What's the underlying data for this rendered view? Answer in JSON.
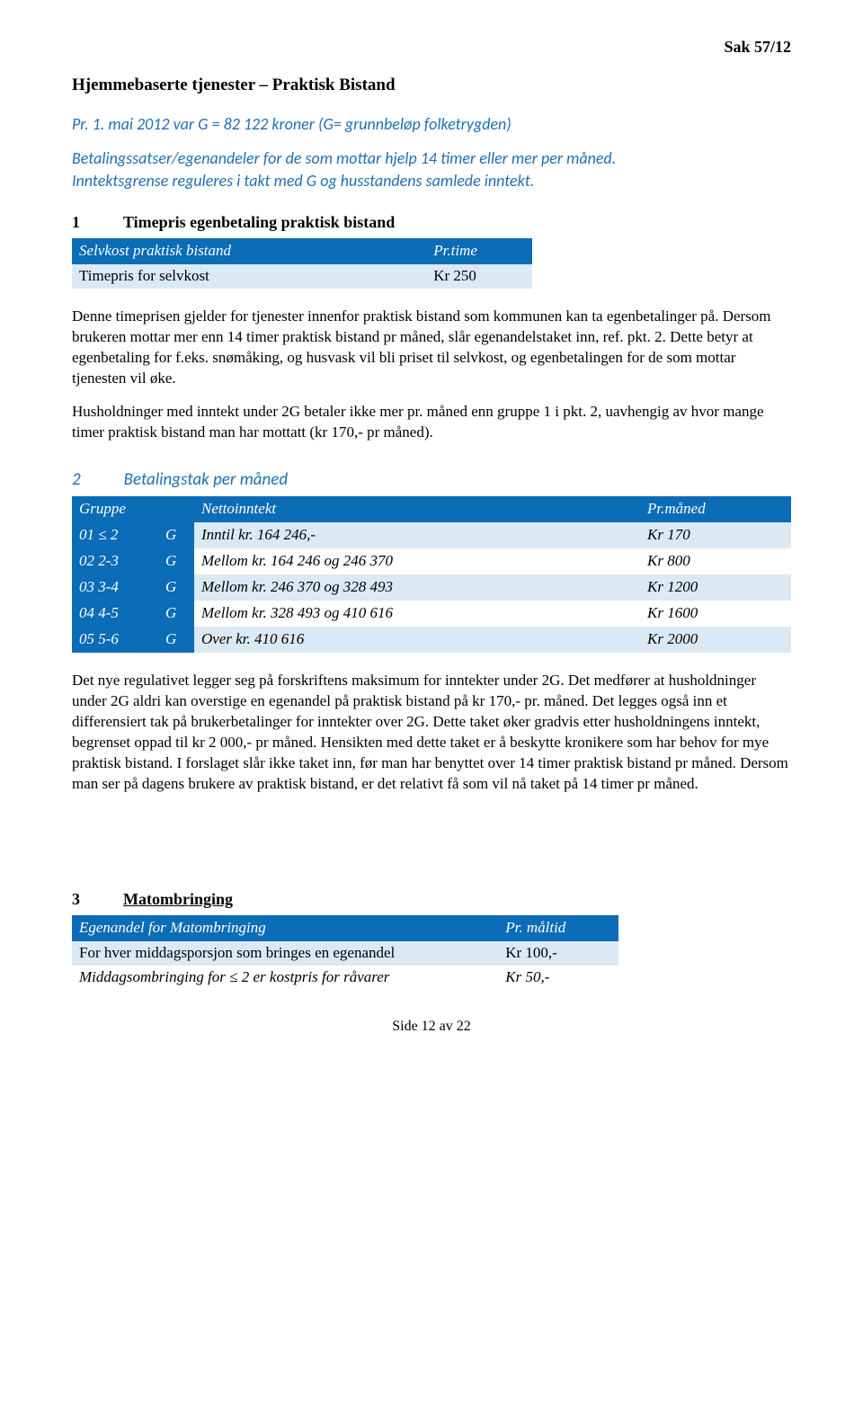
{
  "header_ref": "Sak 57/12",
  "title": "Hjemmebaserte tjenester – Praktisk Bistand",
  "intro": "Pr. 1. mai 2012 var G = 82 122 kroner (G= grunnbeløp folketrygden)",
  "intro2a": "Betalingssatser/egenandeler for de som mottar hjelp 14 timer eller mer per måned.",
  "intro2b": "Inntektsgrense reguleres i takt med G og husstandens samlede inntekt.",
  "sec1_num": "1",
  "sec1_title": "Timepris egenbetaling praktisk bistand",
  "t1": {
    "h1": "Selvkost praktisk bistand",
    "h2": "Pr.time",
    "r1c1": "Timepris for selvkost",
    "r1c2": "Kr 250"
  },
  "para1": "Denne timeprisen gjelder for tjenester innenfor praktisk bistand som kommunen kan ta egenbetalinger på. Dersom brukeren mottar mer enn 14 timer praktisk bistand pr måned, slår egenandelstaket inn, ref. pkt. 2. Dette betyr at egenbetaling for f.eks. snømåking, og husvask vil bli priset til selvkost, og egenbetalingen for de som mottar tjenesten vil øke.",
  "para2": "Husholdninger med inntekt under 2G betaler ikke mer pr. måned enn gruppe 1 i pkt. 2, uavhengig av hvor mange timer praktisk bistand man har mottatt (kr 170,- pr måned).",
  "sec2_num": "2",
  "sec2_title": "Betalingstak per måned",
  "t2": {
    "h1": "Gruppe",
    "h2": "Nettoinntekt",
    "h3": "Pr.måned",
    "rows": [
      {
        "g": "01 ≤ 2",
        "gu": "G",
        "n": "Inntil kr. 164 246,-",
        "p": "Kr 170",
        "shade": true
      },
      {
        "g": "02 2-3",
        "gu": "G",
        "n": "Mellom kr. 164 246 og 246 370",
        "p": "Kr 800",
        "shade": false
      },
      {
        "g": "03 3-4",
        "gu": "G",
        "n": "Mellom kr. 246 370 og 328 493",
        "p": "Kr 1200",
        "shade": true
      },
      {
        "g": "04 4-5",
        "gu": "G",
        "n": "Mellom kr. 328 493 og 410 616",
        "p": "Kr 1600",
        "shade": false
      },
      {
        "g": "05 5-6",
        "gu": "G",
        "n": "Over kr. 410 616",
        "p": "Kr 2000",
        "shade": true
      }
    ]
  },
  "para3": "Det nye regulativet legger seg på forskriftens maksimum for inntekter under 2G. Det medfører at husholdninger under 2G aldri kan overstige en egenandel på praktisk bistand på kr 170,- pr. måned. Det legges også inn et differensiert tak på brukerbetalinger for inntekter over 2G. Dette taket øker gradvis etter husholdningens inntekt, begrenset oppad til kr 2 000,- pr måned. Hensikten med dette taket er å beskytte kronikere som har behov for mye praktisk bistand. I forslaget slår ikke taket inn, før man har benyttet over 14 timer praktisk bistand pr måned. Dersom man ser på dagens brukere av praktisk bistand, er det relativt få som vil nå taket på 14 timer pr måned.",
  "sec3_num": "3",
  "sec3_title": "Matombringing",
  "t3": {
    "h1": "Egenandel for Matombringing",
    "h2": "Pr. måltid",
    "r1c1": "For hver middagsporsjon som bringes en egenandel",
    "r1c2": "Kr 100,-",
    "r2c1": "Middagsombringing for ≤ 2 er kostpris for råvarer",
    "r2c2": "Kr 50,-"
  },
  "footer": "Side 12 av 22"
}
